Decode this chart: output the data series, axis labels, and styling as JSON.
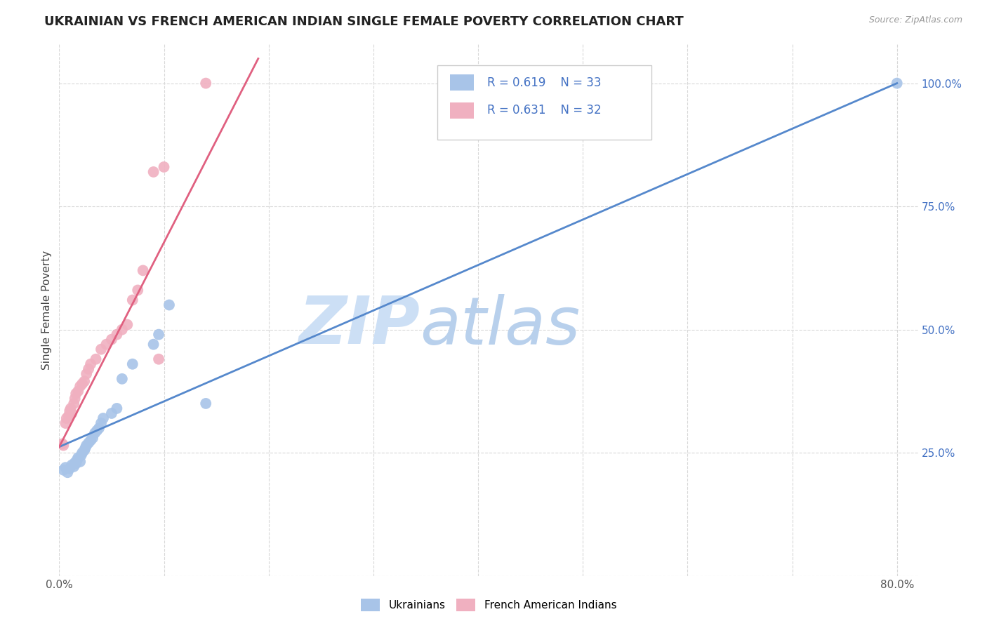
{
  "title": "UKRAINIAN VS FRENCH AMERICAN INDIAN SINGLE FEMALE POVERTY CORRELATION CHART",
  "source": "Source: ZipAtlas.com",
  "ylabel": "Single Female Poverty",
  "background_color": "#ffffff",
  "grid_color": "#d8d8d8",
  "watermark_zip": "ZIP",
  "watermark_atlas": "atlas",
  "watermark_color_zip": "#ccdff5",
  "watermark_color_atlas": "#b8d0ec",
  "legend_r1": "R = 0.619",
  "legend_n1": "N = 33",
  "legend_r2": "R = 0.631",
  "legend_n2": "N = 32",
  "legend_color": "#4472c4",
  "ukrainians_color": "#a8c4e8",
  "french_color": "#f0b0c0",
  "ukr_line_color": "#5588cc",
  "french_line_color": "#e06080",
  "ukrainians_scatter_x": [
    0.004,
    0.006,
    0.008,
    0.01,
    0.012,
    0.014,
    0.015,
    0.016,
    0.017,
    0.018,
    0.02,
    0.021,
    0.022,
    0.024,
    0.025,
    0.026,
    0.028,
    0.03,
    0.032,
    0.034,
    0.036,
    0.038,
    0.04,
    0.042,
    0.05,
    0.055,
    0.06,
    0.07,
    0.09,
    0.095,
    0.105,
    0.14,
    0.8
  ],
  "ukrainians_scatter_y": [
    0.215,
    0.22,
    0.21,
    0.218,
    0.225,
    0.222,
    0.23,
    0.228,
    0.235,
    0.24,
    0.232,
    0.245,
    0.25,
    0.255,
    0.26,
    0.265,
    0.27,
    0.275,
    0.28,
    0.29,
    0.295,
    0.3,
    0.31,
    0.32,
    0.33,
    0.34,
    0.4,
    0.43,
    0.47,
    0.49,
    0.55,
    0.35,
    1.0
  ],
  "french_scatter_x": [
    0.003,
    0.004,
    0.006,
    0.007,
    0.009,
    0.01,
    0.011,
    0.012,
    0.014,
    0.015,
    0.016,
    0.018,
    0.02,
    0.022,
    0.024,
    0.026,
    0.028,
    0.03,
    0.035,
    0.04,
    0.045,
    0.05,
    0.055,
    0.06,
    0.065,
    0.07,
    0.075,
    0.08,
    0.09,
    0.095,
    0.1,
    0.14
  ],
  "french_scatter_y": [
    0.268,
    0.265,
    0.31,
    0.32,
    0.325,
    0.335,
    0.34,
    0.33,
    0.35,
    0.36,
    0.37,
    0.375,
    0.385,
    0.39,
    0.395,
    0.41,
    0.42,
    0.43,
    0.44,
    0.46,
    0.47,
    0.48,
    0.49,
    0.5,
    0.51,
    0.56,
    0.58,
    0.62,
    0.82,
    0.44,
    0.83,
    1.0
  ],
  "ukr_trend_x": [
    0.0,
    0.8
  ],
  "ukr_trend_y": [
    0.262,
    1.0
  ],
  "french_trend_x": [
    0.0,
    0.19
  ],
  "french_trend_y": [
    0.262,
    1.05
  ],
  "title_fontsize": 13,
  "axis_label_fontsize": 11,
  "tick_fontsize": 11,
  "right_tick_color": "#4472c4",
  "xlim": [
    0.0,
    0.82
  ],
  "ylim": [
    0.0,
    1.08
  ]
}
